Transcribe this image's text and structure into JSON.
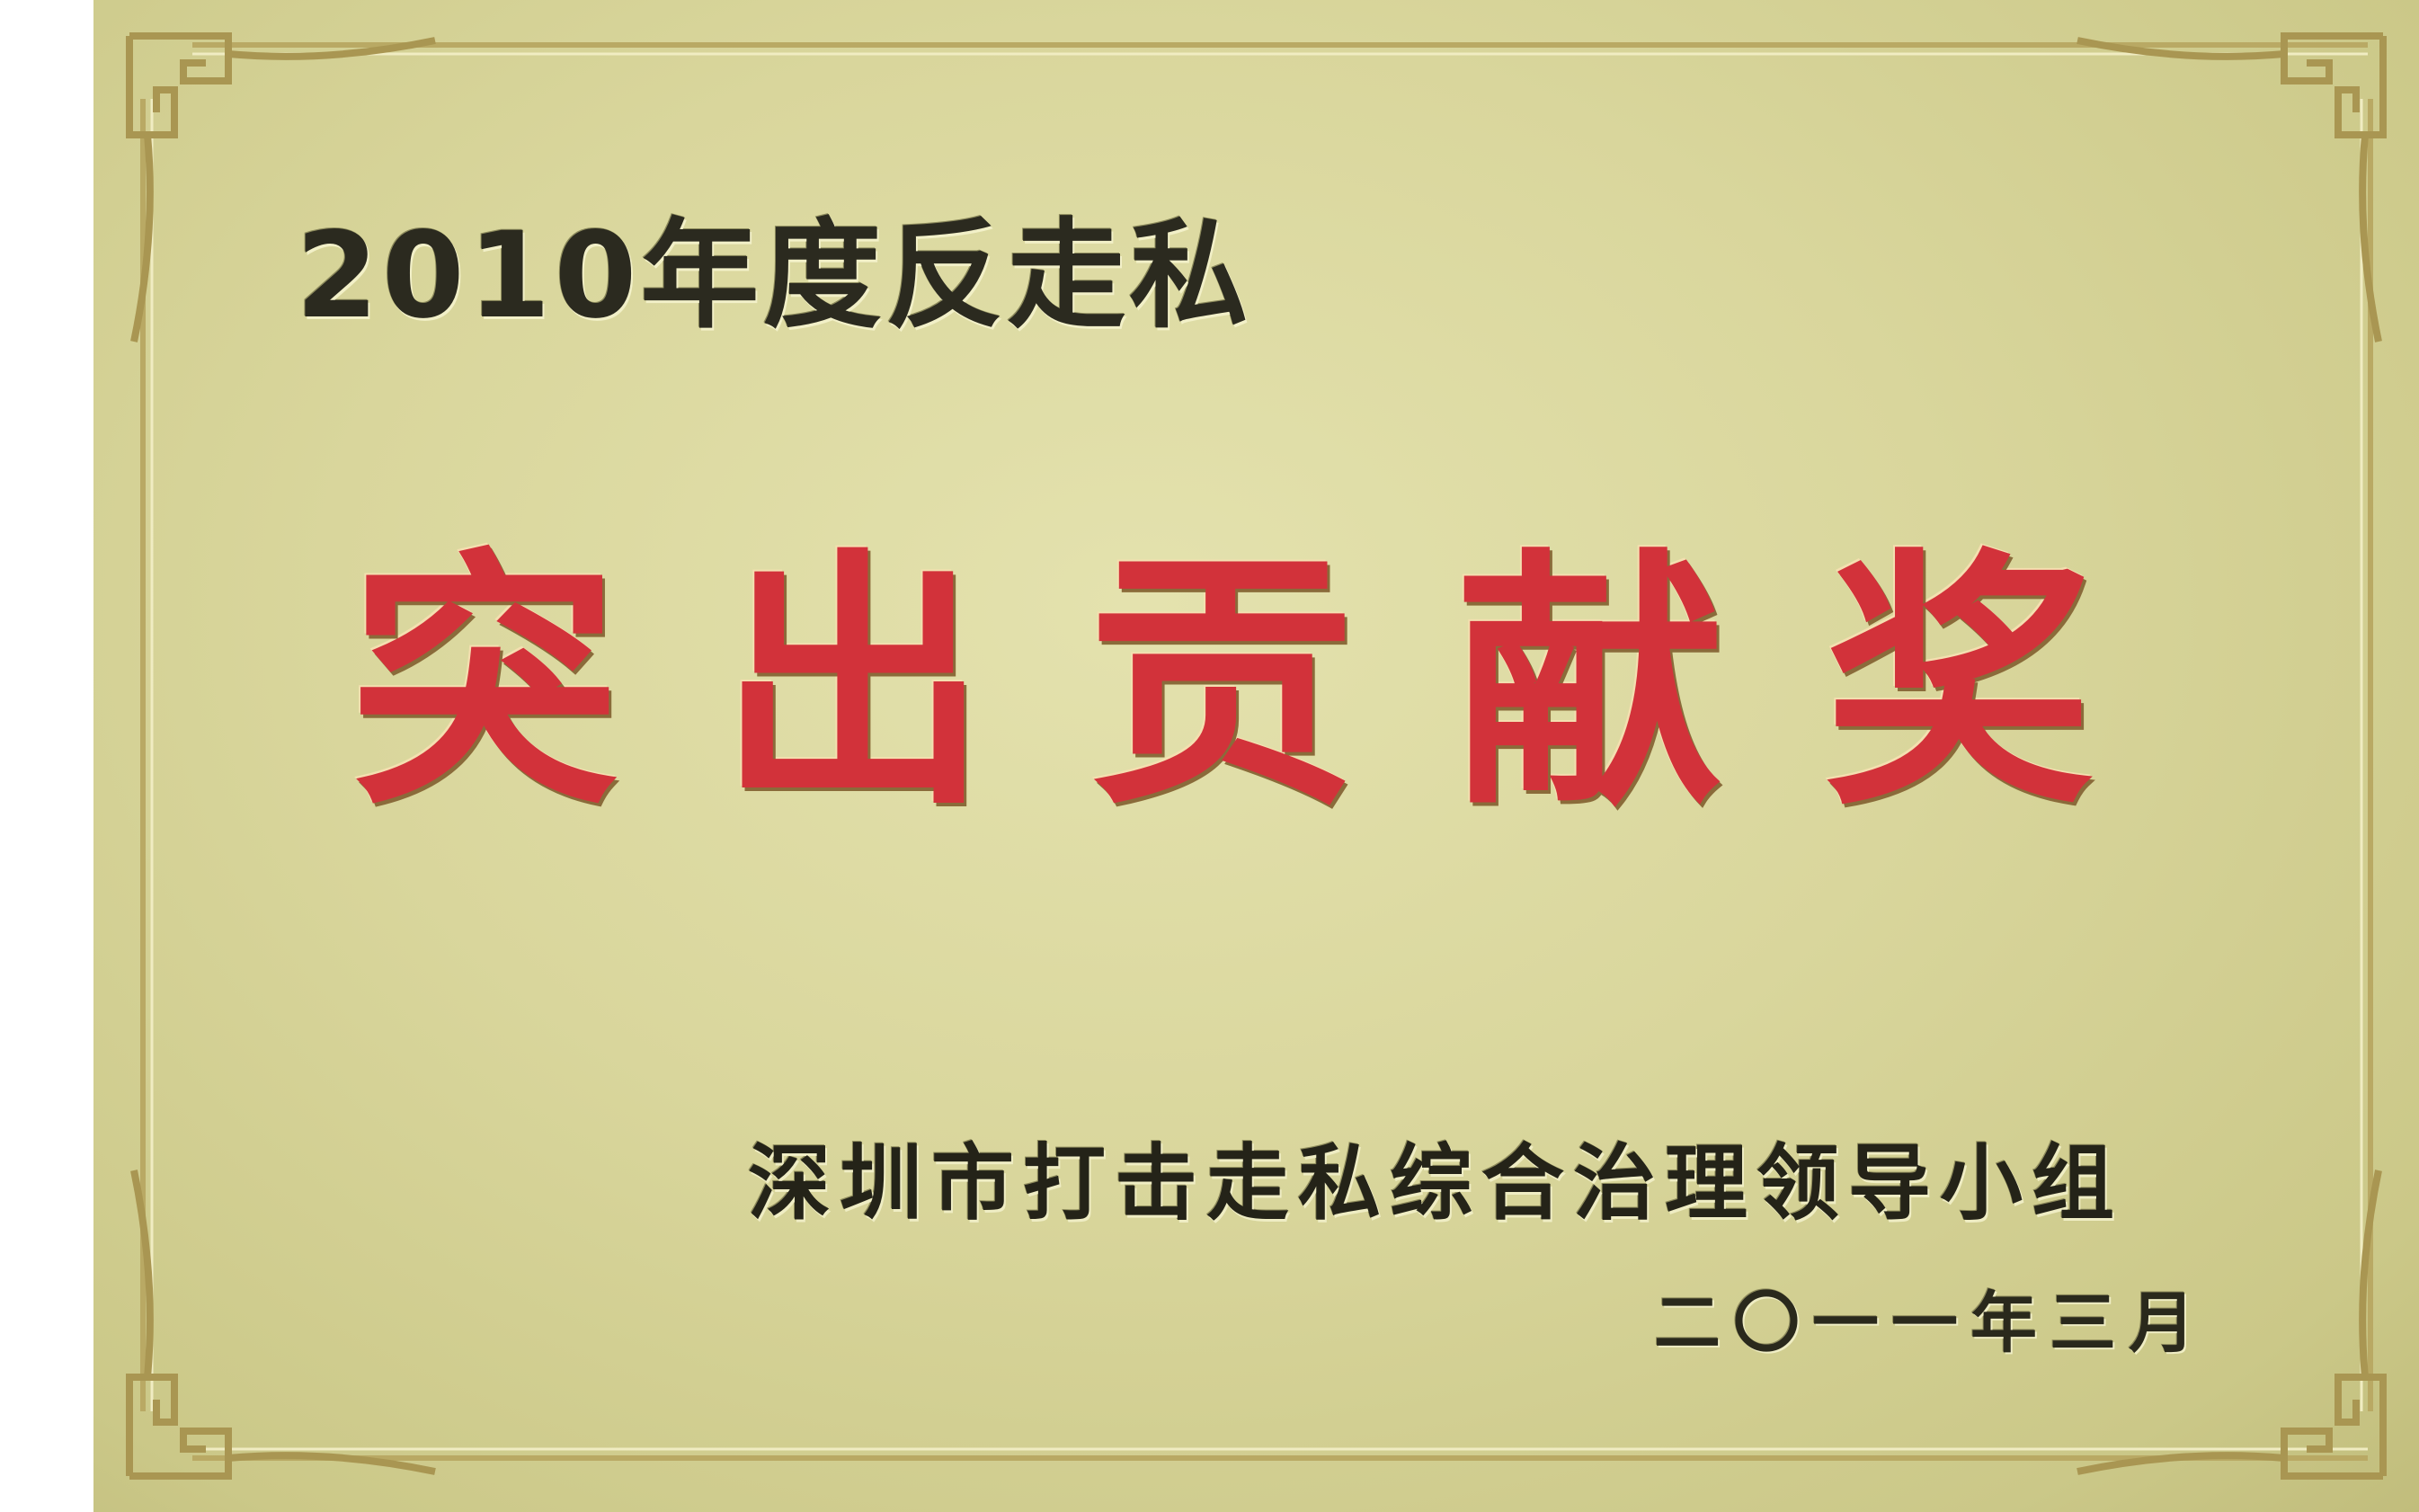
{
  "plaque": {
    "year_title": "2010年度反走私",
    "award_title": "突出贡献奖",
    "issuer": "深圳市打击走私综合治理领导小组",
    "issue_date": "二〇一一年三月"
  },
  "colors": {
    "plaque_gold": "#d9d69c",
    "border_gold": "#b9a964",
    "award_red": "#d2323a",
    "text_dark": "#2b2a1f"
  },
  "icons": {
    "corner_ornament": "chinese-fret-corner-icon"
  }
}
